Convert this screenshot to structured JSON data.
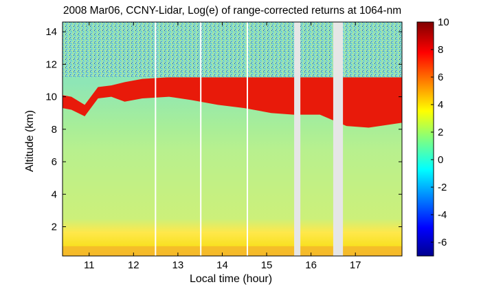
{
  "chart_data": {
    "type": "heatmap",
    "title": "2008 Mar06, CCNY-Lidar, Log(e) of range-corrected returns at 1064-nm",
    "xlabel": "Local time (hour)",
    "ylabel": "Altitude (km)",
    "xlim": [
      10.4,
      18.05
    ],
    "ylim": [
      0.2,
      14.6
    ],
    "x_ticks": [
      "11",
      "12",
      "13",
      "14",
      "15",
      "16",
      "17"
    ],
    "y_ticks": [
      "2",
      "4",
      "6",
      "8",
      "10",
      "12",
      "14"
    ],
    "colorbar": {
      "min": -7,
      "max": 10,
      "ticks": [
        "10",
        "8",
        "6",
        "4",
        "2",
        "0",
        "-2",
        "-4",
        "-6"
      ]
    },
    "data_gaps": [
      {
        "start": 12.48,
        "end": 12.5
      },
      {
        "start": 13.5,
        "end": 13.52
      },
      {
        "start": 14.55,
        "end": 14.57
      },
      {
        "start": 15.62,
        "end": 15.76
      },
      {
        "start": 16.5,
        "end": 16.72
      }
    ],
    "layers": [
      {
        "feature": "cirrus_cloud",
        "value": 7,
        "profile": [
          {
            "x": 10.4,
            "bottom": 9.3,
            "top": 10.1
          },
          {
            "x": 10.6,
            "bottom": 9.2,
            "top": 10.0
          },
          {
            "x": 10.9,
            "bottom": 8.8,
            "top": 9.5
          },
          {
            "x": 11.2,
            "bottom": 9.9,
            "top": 10.6
          },
          {
            "x": 11.5,
            "bottom": 10.0,
            "top": 10.7
          },
          {
            "x": 11.8,
            "bottom": 9.7,
            "top": 10.9
          },
          {
            "x": 12.2,
            "bottom": 9.9,
            "top": 11.1
          },
          {
            "x": 12.8,
            "bottom": 10.0,
            "top": 11.2
          },
          {
            "x": 13.3,
            "bottom": 9.8,
            "top": 11.2
          },
          {
            "x": 13.9,
            "bottom": 9.5,
            "top": 11.2
          },
          {
            "x": 14.5,
            "bottom": 9.3,
            "top": 11.2
          },
          {
            "x": 15.1,
            "bottom": 9.0,
            "top": 11.2
          },
          {
            "x": 15.6,
            "bottom": 8.9,
            "top": 11.2
          },
          {
            "x": 16.2,
            "bottom": 8.9,
            "top": 11.2
          },
          {
            "x": 16.8,
            "bottom": 8.2,
            "top": 11.2
          },
          {
            "x": 17.3,
            "bottom": 8.1,
            "top": 11.2
          },
          {
            "x": 18.05,
            "bottom": 8.4,
            "top": 11.2
          }
        ]
      },
      {
        "feature": "boundary_layer",
        "value": 3.5,
        "bottom": 0.2,
        "top": 0.8
      },
      {
        "feature": "low_aerosol",
        "value": 2,
        "bottom": 0.8,
        "top": 2.6
      },
      {
        "feature": "free_troposphere",
        "value": 1,
        "bottom": 2.6,
        "top": 8.0
      },
      {
        "feature": "noise_region",
        "value": 0,
        "bottom": 11.2,
        "top": 14.6
      }
    ]
  }
}
